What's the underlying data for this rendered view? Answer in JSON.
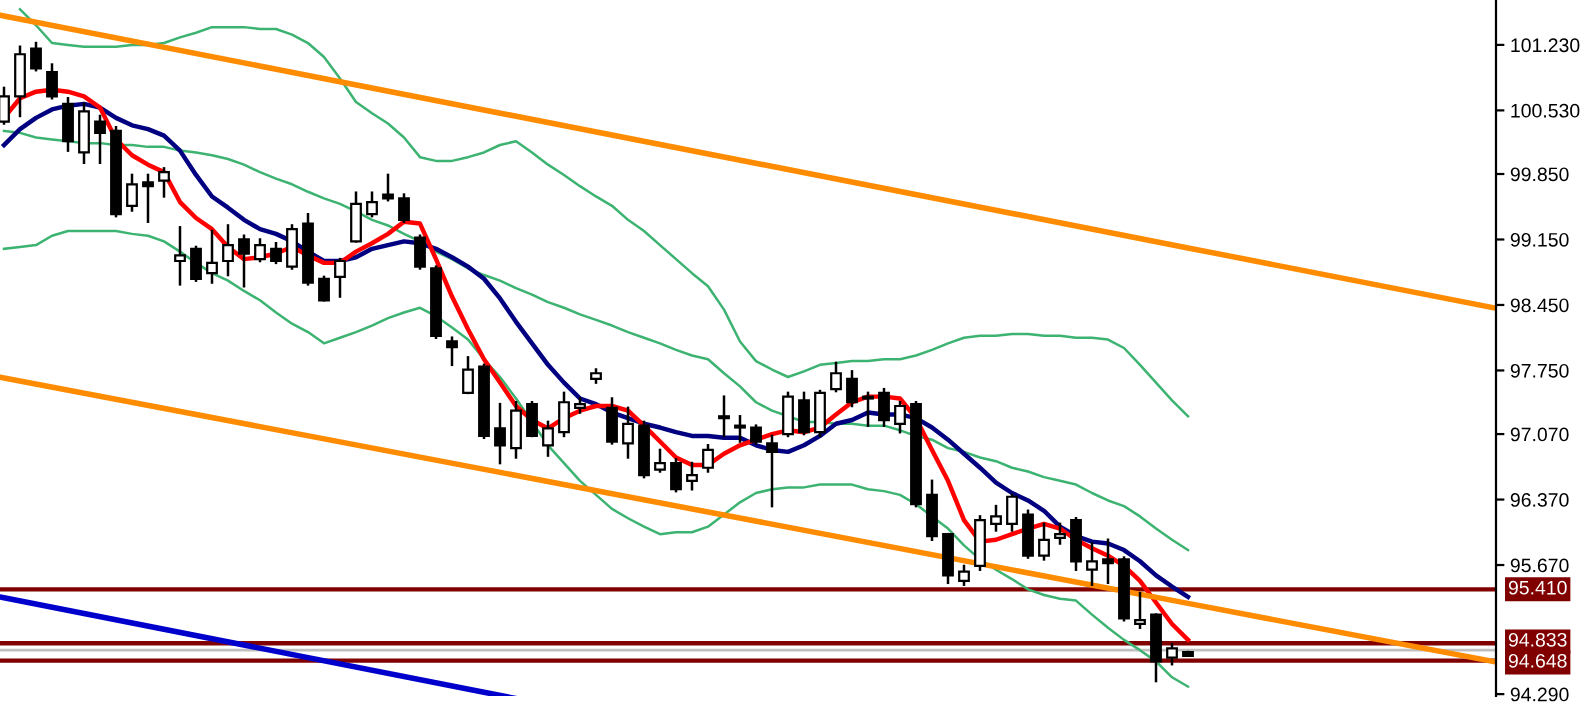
{
  "chart_data": {
    "type": "candlestick",
    "categories": [
      null,
      null,
      null,
      null,
      null,
      null,
      null,
      null,
      null,
      null,
      null,
      null,
      null,
      null,
      null,
      null,
      null,
      null,
      null,
      null,
      null,
      null,
      null,
      null,
      null,
      null,
      null,
      null,
      null,
      null,
      null,
      null,
      null,
      null,
      null,
      null,
      null,
      null,
      null,
      null,
      null,
      null,
      null,
      null,
      null,
      null,
      null,
      null,
      null,
      null,
      null,
      null,
      null,
      null,
      null,
      null,
      null,
      null,
      null,
      null,
      null,
      null,
      null,
      null,
      null,
      null,
      null,
      null,
      null,
      null,
      null,
      null,
      null,
      null,
      null
    ],
    "ohlc": [
      [
        100.41,
        100.77,
        100.39,
        100.68
      ],
      [
        100.68,
        101.21,
        100.47,
        101.13
      ],
      [
        101.19,
        101.25,
        100.96,
        100.98
      ],
      [
        100.94,
        101.02,
        100.66,
        100.68
      ],
      [
        100.6,
        100.66,
        100.1,
        100.2
      ],
      [
        100.08,
        100.6,
        99.97,
        100.52
      ],
      [
        100.41,
        100.47,
        99.97,
        100.29
      ],
      [
        100.31,
        100.35,
        99.4,
        99.42
      ],
      [
        99.51,
        99.84,
        99.46,
        99.74
      ],
      [
        99.76,
        99.84,
        99.34,
        99.72
      ],
      [
        99.78,
        99.91,
        99.61,
        99.87
      ],
      [
        98.92,
        99.28,
        98.67,
        98.98
      ],
      [
        99.05,
        99.07,
        98.71,
        98.73
      ],
      [
        98.79,
        99.24,
        98.69,
        98.9
      ],
      [
        98.92,
        99.3,
        98.77,
        99.09
      ],
      [
        99.15,
        99.19,
        98.65,
        99.0
      ],
      [
        98.94,
        99.15,
        98.92,
        99.09
      ],
      [
        99.05,
        99.11,
        98.9,
        98.92
      ],
      [
        98.86,
        99.3,
        98.84,
        99.26
      ],
      [
        99.32,
        99.42,
        98.67,
        98.69
      ],
      [
        98.73,
        98.75,
        98.5,
        98.5
      ],
      [
        98.75,
        98.94,
        98.54,
        98.92
      ],
      [
        99.13,
        99.65,
        99.13,
        99.53
      ],
      [
        99.42,
        99.65,
        99.4,
        99.55
      ],
      [
        99.63,
        99.84,
        99.57,
        99.59
      ],
      [
        99.59,
        99.63,
        99.34,
        99.36
      ],
      [
        99.17,
        99.19,
        98.84,
        98.86
      ],
      [
        98.84,
        98.86,
        98.1,
        98.12
      ],
      [
        98.06,
        98.1,
        97.81,
        98.0
      ],
      [
        97.51,
        97.89,
        97.51,
        97.76
      ],
      [
        97.79,
        97.81,
        97.03,
        97.05
      ],
      [
        97.13,
        97.39,
        96.76,
        96.95
      ],
      [
        96.92,
        97.41,
        96.82,
        97.32
      ],
      [
        97.39,
        97.41,
        97.05,
        97.05
      ],
      [
        96.95,
        97.2,
        96.84,
        97.13
      ],
      [
        97.09,
        97.51,
        97.05,
        97.41
      ],
      [
        97.35,
        97.45,
        97.3,
        97.39
      ],
      [
        97.66,
        97.76,
        97.62,
        97.72
      ],
      [
        97.35,
        97.45,
        96.97,
        96.99
      ],
      [
        96.97,
        97.35,
        96.82,
        97.18
      ],
      [
        97.16,
        97.2,
        96.61,
        96.63
      ],
      [
        96.69,
        96.9,
        96.67,
        96.76
      ],
      [
        96.76,
        96.8,
        96.46,
        96.48
      ],
      [
        96.57,
        96.76,
        96.48,
        96.63
      ],
      [
        96.71,
        96.95,
        96.67,
        96.9
      ],
      [
        97.26,
        97.47,
        97.05,
        97.24
      ],
      [
        97.16,
        97.26,
        96.99,
        97.14
      ],
      [
        97.14,
        97.16,
        96.97,
        96.99
      ],
      [
        96.97,
        97.05,
        96.3,
        96.88
      ],
      [
        97.07,
        97.51,
        97.05,
        97.47
      ],
      [
        97.43,
        97.51,
        97.07,
        97.09
      ],
      [
        97.09,
        97.53,
        97.05,
        97.51
      ],
      [
        97.55,
        97.83,
        97.53,
        97.72
      ],
      [
        97.66,
        97.74,
        97.37,
        97.41
      ],
      [
        97.47,
        97.51,
        97.16,
        97.45
      ],
      [
        97.51,
        97.55,
        97.16,
        97.22
      ],
      [
        97.18,
        97.41,
        97.09,
        97.37
      ],
      [
        97.39,
        97.41,
        96.3,
        96.32
      ],
      [
        96.42,
        96.57,
        95.94,
        95.98
      ],
      [
        96.0,
        96.0,
        95.48,
        95.56
      ],
      [
        95.5,
        95.66,
        95.46,
        95.6
      ],
      [
        95.66,
        96.19,
        95.62,
        96.15
      ],
      [
        96.11,
        96.3,
        96.04,
        96.19
      ],
      [
        96.11,
        96.42,
        96.04,
        96.4
      ],
      [
        96.21,
        96.25,
        95.75,
        95.77
      ],
      [
        95.77,
        96.11,
        95.73,
        95.94
      ],
      [
        95.96,
        96.11,
        95.9,
        96.0
      ],
      [
        96.15,
        96.17,
        95.62,
        95.71
      ],
      [
        95.62,
        95.9,
        95.46,
        95.71
      ],
      [
        95.73,
        95.94,
        95.48,
        95.69
      ],
      [
        95.73,
        95.75,
        95.08,
        95.1
      ],
      [
        95.04,
        95.37,
        95.0,
        95.08
      ],
      [
        95.14,
        95.14,
        94.43,
        94.64
      ],
      [
        94.68,
        94.82,
        94.61,
        94.78
      ],
      [
        94.74,
        94.74,
        94.7,
        94.7
      ]
    ],
    "series": [
      {
        "type": "line",
        "color": "#3cb371",
        "values": [
          null,
          101.61,
          101.44,
          101.25,
          101.23,
          101.21,
          101.21,
          101.21,
          101.23,
          101.23,
          101.25,
          101.31,
          101.36,
          101.42,
          101.42,
          101.42,
          101.4,
          101.4,
          101.34,
          101.25,
          101.1,
          100.87,
          100.62,
          100.5,
          100.39,
          100.24,
          100.03,
          99.99,
          99.99,
          100.03,
          100.08,
          100.16,
          100.2,
          100.08,
          99.95,
          99.84,
          99.72,
          99.61,
          99.51,
          99.36,
          99.24,
          99.09,
          98.94,
          98.79,
          98.65,
          98.4,
          98.06,
          97.85,
          97.76,
          97.68,
          97.74,
          97.81,
          97.83,
          97.85,
          97.85,
          97.87,
          97.87,
          97.91,
          97.97,
          98.04,
          98.1,
          98.12,
          98.12,
          98.14,
          98.14,
          98.12,
          98.12,
          98.1,
          98.1,
          98.08,
          97.99,
          97.81,
          97.62,
          97.43,
          97.26
        ]
      },
      {
        "type": "line",
        "color": "#3cb371",
        "values": [
          100.31,
          100.29,
          100.24,
          100.22,
          100.2,
          100.18,
          100.18,
          100.16,
          100.16,
          100.14,
          100.14,
          100.1,
          100.08,
          100.05,
          100.01,
          99.95,
          99.87,
          99.8,
          99.74,
          99.66,
          99.59,
          99.53,
          99.45,
          99.36,
          99.3,
          99.21,
          99.13,
          99.02,
          98.94,
          98.84,
          98.77,
          98.71,
          98.63,
          98.56,
          98.48,
          98.42,
          98.35,
          98.29,
          98.23,
          98.16,
          98.1,
          98.04,
          97.97,
          97.91,
          97.87,
          97.72,
          97.58,
          97.41,
          97.32,
          97.26,
          97.2,
          97.2,
          97.18,
          97.18,
          97.16,
          97.16,
          97.11,
          97.05,
          97.01,
          96.92,
          96.88,
          96.82,
          96.78,
          96.71,
          96.67,
          96.61,
          96.57,
          96.53,
          96.44,
          96.36,
          96.3,
          96.19,
          96.06,
          95.94,
          95.83
        ]
      },
      {
        "type": "line",
        "color": "#3cb371",
        "values": [
          99.05,
          99.07,
          99.09,
          99.19,
          99.24,
          99.24,
          99.24,
          99.24,
          99.21,
          99.19,
          99.13,
          99.02,
          98.9,
          98.79,
          98.71,
          98.6,
          98.5,
          98.37,
          98.25,
          98.16,
          98.04,
          98.1,
          98.16,
          98.23,
          98.31,
          98.37,
          98.42,
          98.33,
          98.21,
          98.08,
          97.87,
          97.68,
          97.45,
          97.2,
          96.95,
          96.76,
          96.57,
          96.42,
          96.27,
          96.17,
          96.08,
          96.0,
          96.02,
          96.02,
          96.08,
          96.21,
          96.34,
          96.44,
          96.48,
          96.5,
          96.5,
          96.53,
          96.53,
          96.53,
          96.48,
          96.46,
          96.42,
          96.32,
          96.19,
          96.06,
          95.88,
          95.73,
          95.62,
          95.52,
          95.41,
          95.35,
          95.31,
          95.29,
          95.14,
          95.0,
          94.87,
          94.76,
          94.64,
          94.47,
          94.37
        ]
      },
      {
        "type": "line",
        "color": "#000080",
        "values": [
          100.16,
          100.33,
          100.45,
          100.54,
          100.58,
          100.6,
          100.56,
          100.45,
          100.37,
          100.33,
          100.26,
          100.1,
          99.84,
          99.61,
          99.49,
          99.36,
          99.26,
          99.21,
          99.13,
          99.02,
          98.92,
          98.92,
          98.96,
          99.05,
          99.09,
          99.13,
          99.11,
          99.05,
          98.96,
          98.86,
          98.73,
          98.52,
          98.27,
          98.04,
          97.81,
          97.62,
          97.45,
          97.39,
          97.3,
          97.24,
          97.18,
          97.14,
          97.09,
          97.05,
          97.05,
          97.03,
          97.03,
          96.95,
          96.9,
          96.88,
          96.95,
          97.05,
          97.18,
          97.22,
          97.3,
          97.28,
          97.28,
          97.24,
          97.14,
          97.01,
          96.86,
          96.71,
          96.55,
          96.44,
          96.36,
          96.25,
          96.08,
          95.98,
          95.92,
          95.9,
          95.83,
          95.71,
          95.56,
          95.44,
          95.33
        ]
      },
      {
        "type": "line",
        "color": "#ff0000",
        "values": [
          100.45,
          100.66,
          100.73,
          100.75,
          100.73,
          100.68,
          100.56,
          100.22,
          100.05,
          99.95,
          99.87,
          99.55,
          99.38,
          99.26,
          99.07,
          98.94,
          98.96,
          99.0,
          99.07,
          98.98,
          98.9,
          98.9,
          99.02,
          99.11,
          99.21,
          99.34,
          99.32,
          98.94,
          98.54,
          98.19,
          97.87,
          97.62,
          97.37,
          97.22,
          97.13,
          97.24,
          97.32,
          97.37,
          97.37,
          97.32,
          97.16,
          96.99,
          96.82,
          96.74,
          96.74,
          96.86,
          96.95,
          97.01,
          97.07,
          97.11,
          97.09,
          97.14,
          97.28,
          97.41,
          97.47,
          97.47,
          97.45,
          97.24,
          96.9,
          96.57,
          96.15,
          95.92,
          95.94,
          96.0,
          96.06,
          96.11,
          96.06,
          95.94,
          95.85,
          95.77,
          95.66,
          95.5,
          95.27,
          95.04,
          94.87
        ]
      },
      {
        "type": "line",
        "color": "#ff8c00",
        "values": [
          101.54,
          null,
          null,
          null,
          null,
          null,
          null,
          null,
          null,
          null,
          null,
          null,
          null,
          null,
          null,
          null,
          null,
          null,
          null,
          null,
          null,
          null,
          null,
          null,
          null,
          null,
          null,
          null,
          null,
          null,
          null,
          null,
          null,
          null,
          null,
          null,
          null,
          null,
          null,
          null,
          null,
          null,
          null,
          null,
          null,
          null,
          null,
          null,
          null,
          null,
          null,
          null,
          null,
          null,
          null,
          null,
          null,
          null,
          null,
          null,
          null,
          null,
          null,
          null,
          null,
          null,
          null,
          null,
          null,
          null,
          null,
          null,
          null,
          null,
          99.06
        ]
      },
      {
        "type": "line",
        "color": "#ff8c00",
        "values": [
          97.67,
          null,
          null,
          null,
          null,
          null,
          null,
          null,
          null,
          null,
          null,
          null,
          null,
          null,
          null,
          null,
          null,
          null,
          null,
          null,
          null,
          null,
          null,
          null,
          null,
          null,
          null,
          null,
          null,
          null,
          null,
          null,
          null,
          null,
          null,
          null,
          null,
          null,
          null,
          null,
          null,
          null,
          null,
          null,
          null,
          null,
          null,
          null,
          null,
          null,
          null,
          null,
          null,
          null,
          null,
          null,
          null,
          null,
          null,
          null,
          null,
          null,
          null,
          null,
          null,
          null,
          null,
          null,
          null,
          null,
          null,
          null,
          null,
          null,
          95.26
        ]
      },
      {
        "type": "line",
        "color": "#0000cd",
        "values": [
          95.32,
          null,
          null,
          null,
          null,
          null,
          null,
          null,
          null,
          null,
          null,
          null,
          null,
          null,
          null,
          null,
          null,
          null,
          null,
          null,
          null,
          null,
          null,
          null,
          null,
          null,
          null,
          null,
          null,
          null,
          94.31,
          null,
          null,
          null,
          null,
          null,
          null,
          null,
          null,
          null,
          null,
          null,
          null,
          null,
          null,
          null,
          null,
          null,
          null,
          null,
          null,
          null,
          null,
          null,
          null,
          null,
          null,
          null,
          null,
          null,
          null,
          null,
          null,
          null,
          null,
          null,
          null,
          null,
          null,
          null,
          null,
          null,
          null,
          null,
          null
        ]
      }
    ],
    "ylim": [
      94.27,
      101.71
    ],
    "yticks": [
      {
        "value": 101.23,
        "label": "101.230"
      },
      {
        "value": 100.53,
        "label": "100.530"
      },
      {
        "value": 99.85,
        "label": "99.850"
      },
      {
        "value": 99.15,
        "label": "99.150"
      },
      {
        "value": 98.45,
        "label": "98.450"
      },
      {
        "value": 97.75,
        "label": "97.750"
      },
      {
        "value": 97.07,
        "label": "97.070"
      },
      {
        "value": 96.37,
        "label": "96.370"
      },
      {
        "value": 95.67,
        "label": "95.670"
      },
      {
        "value": 94.29,
        "label": "94.290"
      }
    ],
    "tick_labels": "y",
    "ref_lines": [
      {
        "axis": "y",
        "value": 95.41,
        "label": "95.410",
        "color": "#800000"
      },
      {
        "axis": "y",
        "value": 94.833,
        "label": "94.833",
        "color": "#800000"
      },
      {
        "axis": "y",
        "value": 94.76,
        "color": "#c0c0c0"
      },
      {
        "axis": "y",
        "value": 94.648,
        "label": "94.648",
        "color": "#800000"
      }
    ]
  }
}
